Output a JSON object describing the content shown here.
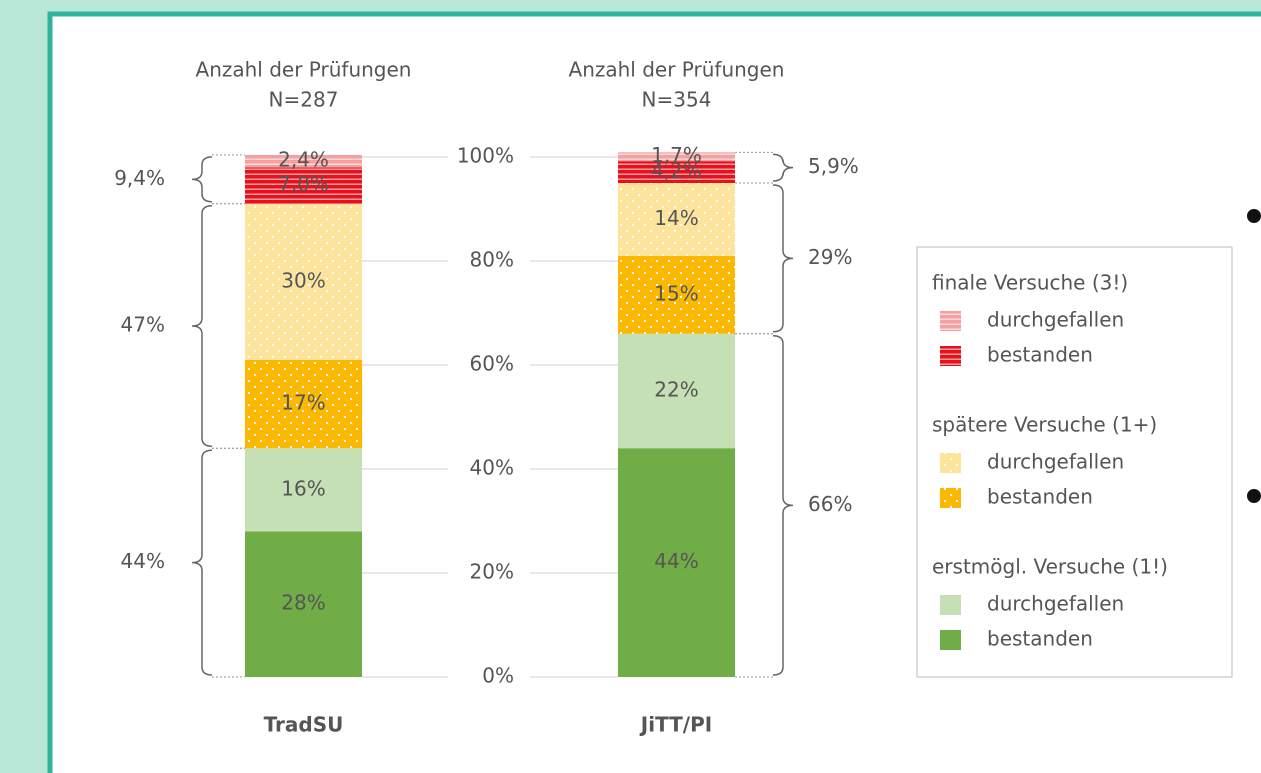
{
  "chart_data": {
    "type": "stacked_bar",
    "categories": [
      "TradSU",
      "JiTT/PI"
    ],
    "category_subtitles": [
      {
        "title": "Anzahl der Prüfungen",
        "count": "N=287"
      },
      {
        "title": "Anzahl der Prüfungen",
        "count": "N=354"
      }
    ],
    "series": [
      {
        "name": "bestanden",
        "group": "erstmögl. Versuche (1!)",
        "color": "#70ad47",
        "pattern": "none",
        "values": [
          28,
          44
        ],
        "value_labels": [
          "28%",
          "44%"
        ]
      },
      {
        "name": "durchgefallen",
        "group": "erstmögl. Versuche (1!)",
        "color": "#c5e0b4",
        "pattern": "none",
        "values": [
          16,
          22
        ],
        "value_labels": [
          "16%",
          "22%"
        ]
      },
      {
        "name": "bestanden",
        "group": "spätere Versuche (1+)",
        "color": "#fbb800",
        "pattern": "dots",
        "values": [
          17,
          15
        ],
        "value_labels": [
          "17%",
          "15%"
        ]
      },
      {
        "name": "durchgefallen",
        "group": "spätere Versuche (1+)",
        "color": "#fde49c",
        "pattern": "dots",
        "values": [
          30,
          14
        ],
        "value_labels": [
          "30%",
          "14%"
        ]
      },
      {
        "name": "bestanden",
        "group": "finale Versuche (3!)",
        "color": "#e8101a",
        "pattern": "stripes",
        "values": [
          7.0,
          4.2
        ],
        "value_labels": [
          "7,0%",
          "4,2%"
        ]
      },
      {
        "name": "durchgefallen",
        "group": "finale Versuche (3!)",
        "color": "#f4a0a0",
        "pattern": "stripes",
        "values": [
          2.4,
          1.7
        ],
        "value_labels": [
          "2,4%",
          "1,7%"
        ]
      }
    ],
    "group_totals": [
      {
        "values": [
          44,
          47,
          9.4
        ],
        "value_labels": [
          "44%",
          "47%",
          "9,4%"
        ]
      },
      {
        "values": [
          66,
          29,
          5.9
        ],
        "value_labels": [
          "66%",
          "29%",
          "5,9%"
        ]
      }
    ],
    "ylim": [
      0,
      100
    ],
    "yticks": [
      {
        "value": 0,
        "label": "0%"
      },
      {
        "value": 20,
        "label": "20%"
      },
      {
        "value": 40,
        "label": "40%"
      },
      {
        "value": 60,
        "label": "60%"
      },
      {
        "value": 80,
        "label": "80%"
      },
      {
        "value": 100,
        "label": "100%"
      }
    ],
    "grid": true
  }
}
